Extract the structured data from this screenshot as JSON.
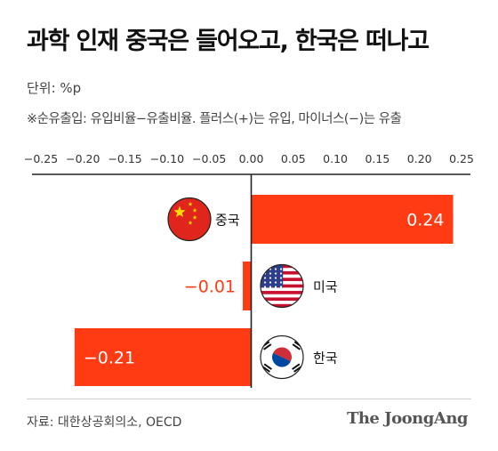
{
  "header": {
    "title": "과학 인재 중국은 들어오고, 한국은 떠나고",
    "unit": "단위: %p",
    "note": "※순유출입: 유입비율−유출비율. 플러스(+)는 유입, 마이너스(−)는 유출"
  },
  "footer": {
    "source": "자료: 대한상공회의소, OECD",
    "brand": "The JoongAng"
  },
  "colors": {
    "bar": "#ff3b14",
    "negative_label": "#ff3b14",
    "positive_label": "#ffffff",
    "axis": "#222222",
    "tick_text": "#333333"
  },
  "chart_data": {
    "type": "bar",
    "orientation": "horizontal",
    "categories": [
      "중국",
      "미국",
      "한국"
    ],
    "values": [
      0.24,
      -0.01,
      -0.21
    ],
    "value_labels": [
      "0.24",
      "−0.01",
      "−0.21"
    ],
    "flag_icons": [
      "china-flag-icon",
      "usa-flag-icon",
      "korea-flag-icon"
    ],
    "xlim": [
      -0.25,
      0.25
    ],
    "xticks": [
      -0.25,
      -0.2,
      -0.15,
      -0.1,
      -0.05,
      0,
      0.05,
      0.1,
      0.15,
      0.2,
      0.25
    ],
    "xtick_labels": [
      "−0.25",
      "−0.20",
      "−0.15",
      "−0.10",
      "−0.05",
      "0.00",
      "0.05",
      "0.10",
      "0.15",
      "0.20",
      "0.25"
    ],
    "grid": false,
    "tick_position": "top"
  }
}
